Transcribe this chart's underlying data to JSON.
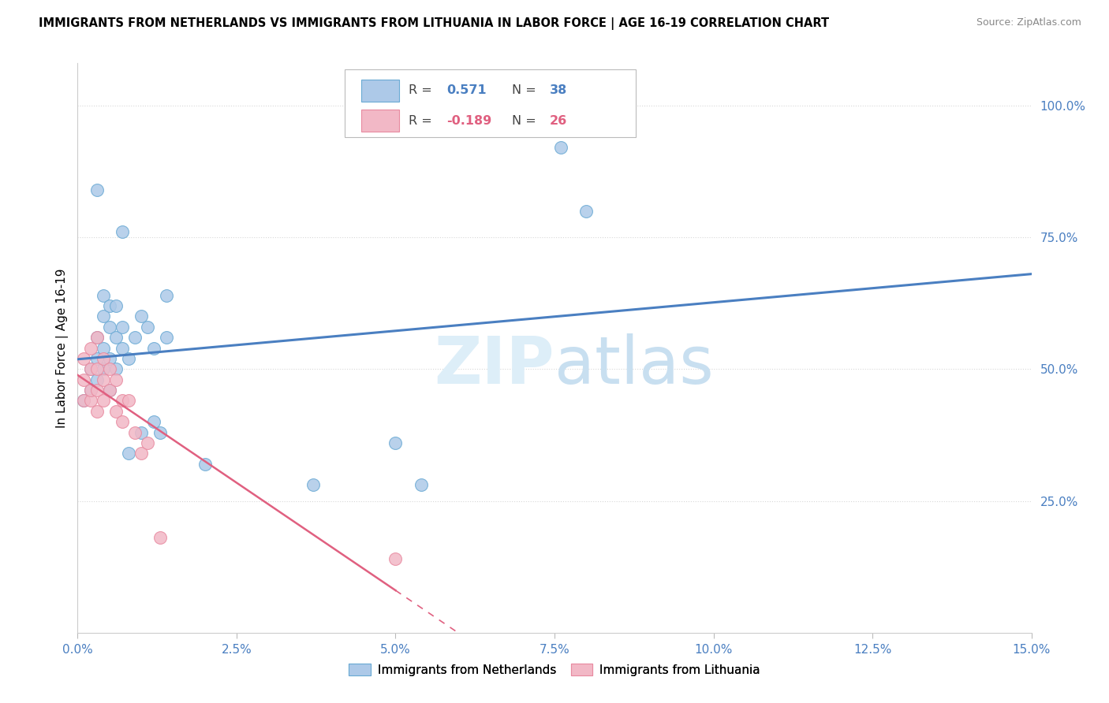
{
  "title": "IMMIGRANTS FROM NETHERLANDS VS IMMIGRANTS FROM LITHUANIA IN LABOR FORCE | AGE 16-19 CORRELATION CHART",
  "source": "Source: ZipAtlas.com",
  "ylabel_left": "In Labor Force | Age 16-19",
  "watermark_zip": "ZIP",
  "watermark_atlas": "atlas",
  "legend_r1_label": "R = ",
  "legend_r1_val": " 0.571",
  "legend_n1_label": "N = ",
  "legend_n1_val": "38",
  "legend_r2_label": "R = ",
  "legend_r2_val": "-0.189",
  "legend_n2_label": "N = ",
  "legend_n2_val": "26",
  "netherlands_color": "#adc9e8",
  "netherlands_edge_color": "#6aaad4",
  "netherlands_line_color": "#4a7fc1",
  "lithuania_color": "#f2b8c6",
  "lithuania_edge_color": "#e88aa0",
  "lithuania_line_color": "#e06080",
  "nl_scatter": [
    [
      0.001,
      0.44
    ],
    [
      0.002,
      0.46
    ],
    [
      0.002,
      0.5
    ],
    [
      0.003,
      0.48
    ],
    [
      0.003,
      0.52
    ],
    [
      0.003,
      0.56
    ],
    [
      0.003,
      0.84
    ],
    [
      0.004,
      0.5
    ],
    [
      0.004,
      0.54
    ],
    [
      0.004,
      0.6
    ],
    [
      0.004,
      0.64
    ],
    [
      0.005,
      0.46
    ],
    [
      0.005,
      0.52
    ],
    [
      0.005,
      0.58
    ],
    [
      0.005,
      0.62
    ],
    [
      0.006,
      0.5
    ],
    [
      0.006,
      0.56
    ],
    [
      0.006,
      0.62
    ],
    [
      0.007,
      0.54
    ],
    [
      0.007,
      0.58
    ],
    [
      0.007,
      0.76
    ],
    [
      0.008,
      0.34
    ],
    [
      0.008,
      0.52
    ],
    [
      0.009,
      0.56
    ],
    [
      0.01,
      0.38
    ],
    [
      0.01,
      0.6
    ],
    [
      0.011,
      0.58
    ],
    [
      0.012,
      0.4
    ],
    [
      0.012,
      0.54
    ],
    [
      0.013,
      0.38
    ],
    [
      0.014,
      0.56
    ],
    [
      0.014,
      0.64
    ],
    [
      0.02,
      0.32
    ],
    [
      0.037,
      0.28
    ],
    [
      0.05,
      0.36
    ],
    [
      0.054,
      0.28
    ],
    [
      0.076,
      0.92
    ],
    [
      0.08,
      0.8
    ]
  ],
  "lt_scatter": [
    [
      0.001,
      0.44
    ],
    [
      0.001,
      0.48
    ],
    [
      0.001,
      0.52
    ],
    [
      0.002,
      0.44
    ],
    [
      0.002,
      0.46
    ],
    [
      0.002,
      0.5
    ],
    [
      0.002,
      0.54
    ],
    [
      0.003,
      0.42
    ],
    [
      0.003,
      0.46
    ],
    [
      0.003,
      0.5
    ],
    [
      0.003,
      0.56
    ],
    [
      0.004,
      0.44
    ],
    [
      0.004,
      0.48
    ],
    [
      0.004,
      0.52
    ],
    [
      0.005,
      0.46
    ],
    [
      0.005,
      0.5
    ],
    [
      0.006,
      0.42
    ],
    [
      0.006,
      0.48
    ],
    [
      0.007,
      0.4
    ],
    [
      0.007,
      0.44
    ],
    [
      0.008,
      0.44
    ],
    [
      0.009,
      0.38
    ],
    [
      0.01,
      0.34
    ],
    [
      0.011,
      0.36
    ],
    [
      0.013,
      0.18
    ],
    [
      0.05,
      0.14
    ]
  ],
  "xmin": 0.0,
  "xmax": 0.15,
  "ymin": 0.0,
  "ymax": 1.08,
  "xtick_vals": [
    0.0,
    0.025,
    0.05,
    0.075,
    0.1,
    0.125,
    0.15
  ],
  "ytick_right_vals": [
    0.25,
    0.5,
    0.75,
    1.0
  ],
  "ytick_right_labels": [
    "25.0%",
    "50.0%",
    "75.0%",
    "100.0%"
  ],
  "background_color": "#ffffff",
  "grid_color": "#d8d8d8",
  "tick_color": "#4a7fc1"
}
